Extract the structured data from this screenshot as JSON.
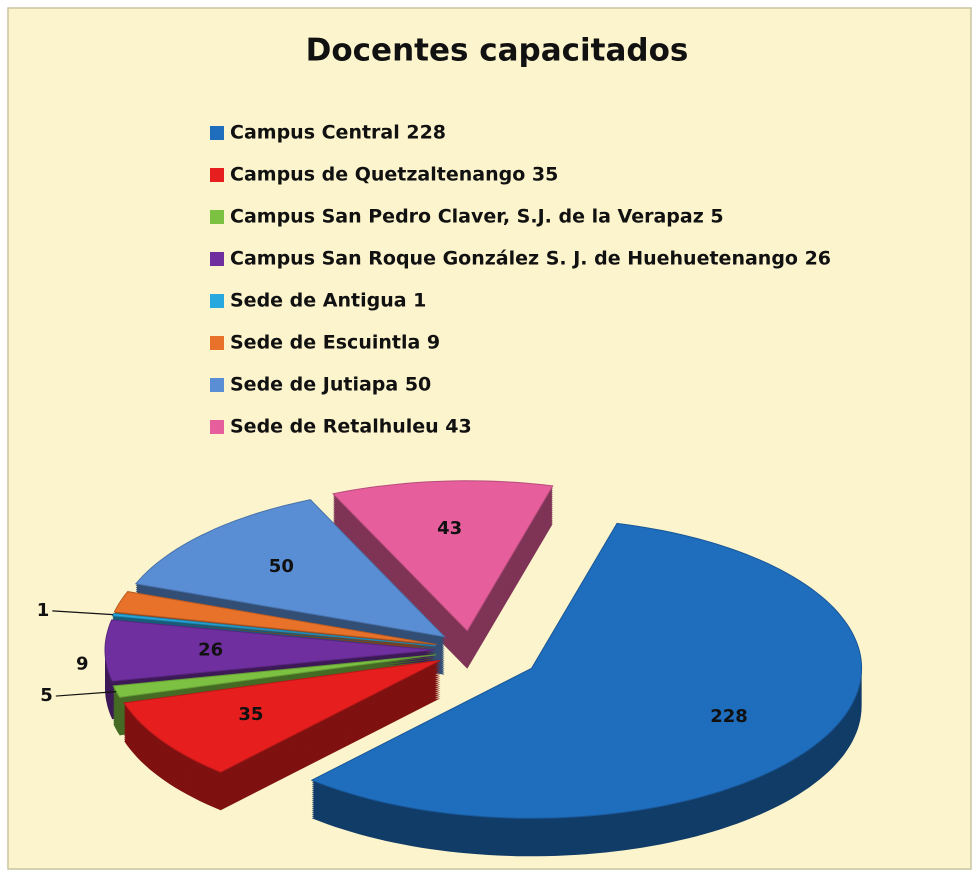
{
  "chart_data": {
    "type": "pie",
    "title": "Docentes capacitados",
    "categories": [
      "Campus Central 228",
      "Campus de Quetzaltenango 35",
      "Campus San Pedro Claver, S.J. de la Verapaz 5",
      "Campus San Roque González S. J. de Huehuetenango 26",
      "Sede de Antigua 1",
      "Sede de Escuintla 9",
      "Sede de Jutiapa 50",
      "Sede de Retalhuleu 43"
    ],
    "values": [
      228,
      35,
      5,
      26,
      1,
      9,
      50,
      43
    ],
    "colors": [
      "#1f6dbd",
      "#e61e1e",
      "#7cc142",
      "#6f2f9f",
      "#27a9df",
      "#e8722a",
      "#5a8ed4",
      "#e65f9c"
    ],
    "legend": "top"
  }
}
